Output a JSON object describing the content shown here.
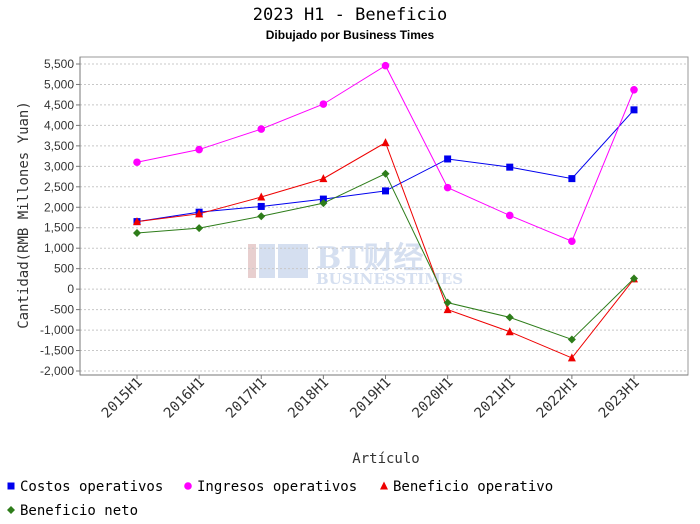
{
  "chart_data": {
    "type": "line",
    "title": "2023 H1 - Beneficio",
    "subtitle": "Dibujado por Business Times",
    "xlabel": "Artículo",
    "ylabel": "Cantidad(RMB Millones Yuan)",
    "ylim": [
      -2000,
      5500
    ],
    "yticks": [
      -2000,
      -1500,
      -1000,
      -500,
      0,
      500,
      1000,
      1500,
      2000,
      2500,
      3000,
      3500,
      4000,
      4500,
      5000,
      5500
    ],
    "ytick_labels": [
      "-2,000",
      "-1,500",
      "-1,000",
      "-500",
      "0",
      "500",
      "1,000",
      "1,500",
      "2,000",
      "2,500",
      "3,000",
      "3,500",
      "4,000",
      "4,500",
      "5,000",
      "5,500"
    ],
    "categories": [
      "2015H1",
      "2016H1",
      "2017H1",
      "2018H1",
      "2019H1",
      "2020H1",
      "2021H1",
      "2022H1",
      "2023H1"
    ],
    "grid": true,
    "legend_position": "bottom",
    "series": [
      {
        "name": "Costos operativos",
        "color": "#0000ee",
        "marker": "square",
        "values": [
          1650,
          1880,
          2020,
          2200,
          2400,
          3180,
          2980,
          2700,
          4380
        ]
      },
      {
        "name": "Ingresos operativos",
        "color": "#ff00ff",
        "marker": "circle",
        "values": [
          3100,
          3410,
          3910,
          4520,
          5460,
          2480,
          1800,
          1170,
          4870
        ]
      },
      {
        "name": "Beneficio operativo",
        "color": "#ee0000",
        "marker": "triangle",
        "values": [
          1650,
          1840,
          2250,
          2700,
          3580,
          -500,
          -1040,
          -1680,
          250
        ]
      },
      {
        "name": "Beneficio neto",
        "color": "#2e7d1a",
        "marker": "diamond",
        "values": [
          1370,
          1490,
          1780,
          2100,
          2820,
          -330,
          -690,
          -1230,
          260
        ]
      }
    ]
  },
  "watermark": {
    "text_main": "BT财经",
    "text_sub": "BUSINESSTIMES"
  }
}
